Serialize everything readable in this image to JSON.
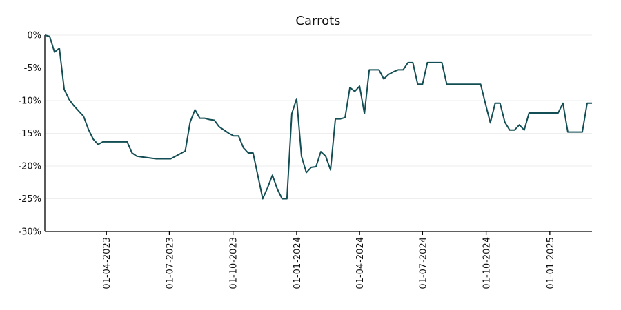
{
  "chart_data": {
    "type": "line",
    "title": "Carrots",
    "xlabel": "",
    "ylabel": "",
    "x_range": [
      "2023-01-02",
      "2025-03-03"
    ],
    "ylim": [
      -30,
      0
    ],
    "y_ticks": [
      0,
      -5,
      -10,
      -15,
      -20,
      -25,
      -30
    ],
    "y_tick_labels": [
      "0%",
      "-5%",
      "-10%",
      "-15%",
      "-20%",
      "-25%",
      "-30%"
    ],
    "x_ticks": [
      "2023-04-01",
      "2023-07-01",
      "2023-10-01",
      "2024-01-01",
      "2024-04-01",
      "2024-07-01",
      "2024-10-01",
      "2025-01-01"
    ],
    "x_tick_labels": [
      "01-04-2023",
      "01-07-2023",
      "01-10-2023",
      "01-01-2024",
      "01-04-2024",
      "01-07-2024",
      "01-10-2024",
      "01-01-2025"
    ],
    "grid": "horizontal",
    "line_color": "#124e54",
    "series": [
      {
        "x": [
          "2023-01-02",
          "2023-01-09",
          "2023-01-16",
          "2023-01-23",
          "2023-01-30",
          "2023-02-06",
          "2023-02-13",
          "2023-02-20",
          "2023-02-27",
          "2023-03-06",
          "2023-03-13",
          "2023-03-20",
          "2023-03-27",
          "2023-04-03",
          "2023-04-10",
          "2023-04-17",
          "2023-04-24",
          "2023-05-01",
          "2023-05-08",
          "2023-05-15",
          "2023-05-22",
          "2023-05-29",
          "2023-06-05",
          "2023-06-12",
          "2023-06-19",
          "2023-06-26",
          "2023-07-03",
          "2023-07-10",
          "2023-07-17",
          "2023-07-24",
          "2023-07-31",
          "2023-08-07",
          "2023-08-14",
          "2023-08-21",
          "2023-08-28",
          "2023-09-04",
          "2023-09-11",
          "2023-09-18",
          "2023-09-25",
          "2023-10-02",
          "2023-10-09",
          "2023-10-16",
          "2023-10-23",
          "2023-10-30",
          "2023-11-06",
          "2023-11-13",
          "2023-11-20",
          "2023-11-27",
          "2023-12-04",
          "2023-12-11",
          "2023-12-18",
          "2023-12-25",
          "2024-01-01",
          "2024-01-08",
          "2024-01-15",
          "2024-01-22",
          "2024-01-29",
          "2024-02-05",
          "2024-02-12",
          "2024-02-19",
          "2024-02-26",
          "2024-03-04",
          "2024-03-11",
          "2024-03-18",
          "2024-03-25",
          "2024-04-01",
          "2024-04-08",
          "2024-04-15",
          "2024-04-22",
          "2024-04-29",
          "2024-05-06",
          "2024-05-13",
          "2024-05-20",
          "2024-05-27",
          "2024-06-03",
          "2024-06-10",
          "2024-06-17",
          "2024-06-24",
          "2024-07-01",
          "2024-07-08",
          "2024-07-15",
          "2024-07-22",
          "2024-07-29",
          "2024-08-05",
          "2024-08-12",
          "2024-08-19",
          "2024-08-26",
          "2024-09-02",
          "2024-09-09",
          "2024-09-16",
          "2024-09-23",
          "2024-09-30",
          "2024-10-07",
          "2024-10-14",
          "2024-10-21",
          "2024-10-28",
          "2024-11-04",
          "2024-11-11",
          "2024-11-18",
          "2024-11-25",
          "2024-12-02",
          "2024-12-09",
          "2024-12-16",
          "2024-12-23",
          "2024-12-30",
          "2025-01-06",
          "2025-01-13",
          "2025-01-20",
          "2025-01-27",
          "2025-02-03",
          "2025-02-10",
          "2025-02-17",
          "2025-02-24",
          "2025-03-03"
        ],
        "values": [
          0,
          -0.2,
          -2.6,
          -2.0,
          -8.3,
          -9.8,
          -10.8,
          -11.6,
          -12.4,
          -14.4,
          -15.9,
          -16.7,
          -16.3,
          -16.3,
          -16.3,
          -16.3,
          -16.3,
          -16.3,
          -18.0,
          -18.5,
          -18.6,
          -18.7,
          -18.8,
          -18.9,
          -18.9,
          -18.9,
          -18.9,
          -18.5,
          -18.1,
          -17.7,
          -13.3,
          -11.4,
          -12.7,
          -12.7,
          -12.9,
          -13.0,
          -14.0,
          -14.5,
          -15.0,
          -15.4,
          -15.4,
          -17.2,
          -18.0,
          -18.0,
          -21.5,
          -25.0,
          -23.3,
          -21.4,
          -23.5,
          -25.0,
          -25.0,
          -12.0,
          -9.7,
          -18.5,
          -21.0,
          -20.2,
          -20.1,
          -17.8,
          -18.5,
          -20.6,
          -12.8,
          -12.8,
          -12.6,
          -8.0,
          -8.6,
          -7.8,
          -12.0,
          -5.3,
          -5.3,
          -5.3,
          -6.7,
          -6.0,
          -5.6,
          -5.3,
          -5.3,
          -4.2,
          -4.2,
          -7.5,
          -7.5,
          -4.2,
          -4.2,
          -4.2,
          -4.2,
          -7.5,
          -7.5,
          -7.5,
          -7.5,
          -7.5,
          -7.5,
          -7.5,
          -7.5,
          -10.5,
          -13.4,
          -10.4,
          -10.4,
          -13.3,
          -14.5,
          -14.5,
          -13.7,
          -14.5,
          -11.9,
          -11.9,
          -11.9,
          -11.9,
          -11.9,
          -11.9,
          -11.9,
          -10.4,
          -14.8,
          -14.8,
          -14.8,
          -14.8,
          -10.4,
          -10.4
        ]
      }
    ]
  }
}
